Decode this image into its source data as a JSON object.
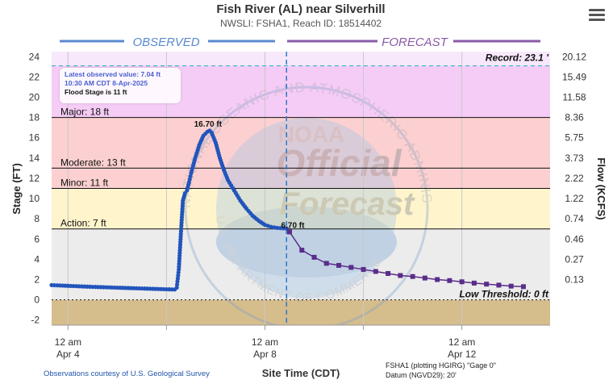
{
  "title": "Fish River (AL) near Silverhill",
  "subtitle": "NWSLI: FSHA1, Reach ID: 18514402",
  "observed_label": "OBSERVED",
  "forecast_label": "FORECAST",
  "info_box": {
    "latest": "Latest observed value: 7.04 ft",
    "time": "10:30 AM CDT 8-Apr-2025",
    "flood_stage": "Flood Stage is 11 ft"
  },
  "watermark": {
    "ring_text": "NATIONAL OCEANIC AND ATMOSPHERIC ADMINISTRATION",
    "bottom_text": "U.S. DEPARTMENT OF COMMERCE",
    "noaa": "NOAA",
    "official": "Official",
    "forecast": "Forecast"
  },
  "credit": "Observations courtesy of U.S. Geological Survey",
  "footnote1": "FSHA1 (plotting HGIRG) \"Gage 0\"",
  "footnote2": "Datum (NGVD29): 20'",
  "colors": {
    "observed": "#2255bb",
    "forecast": "#5a2d8a",
    "major": "#f4c6f4",
    "moderate": "#fcd0d0",
    "minor": "#fff4cc",
    "action": "#ececec",
    "below": "#d6bd8c",
    "current_line": "#2a7ac9"
  },
  "chart_data": {
    "type": "line",
    "xlabel": "Site Time (CDT)",
    "ylabel": "Stage (FT)",
    "y2label": "Flow (KCFS)",
    "ylim": [
      -2.5,
      24.5
    ],
    "xlim": [
      "2025-04-03T16:00",
      "2025-04-13T19:00"
    ],
    "y_ticks": [
      -2,
      0,
      2,
      4,
      6,
      8,
      10,
      12,
      14,
      16,
      18,
      20,
      22,
      24
    ],
    "y2_ticks": [
      {
        "stage": 2,
        "flow": "0.13"
      },
      {
        "stage": 4,
        "flow": "0.27"
      },
      {
        "stage": 6,
        "flow": "0.46"
      },
      {
        "stage": 8,
        "flow": "0.74"
      },
      {
        "stage": 10,
        "flow": "1.22"
      },
      {
        "stage": 12,
        "flow": "2.22"
      },
      {
        "stage": 14,
        "flow": "3.73"
      },
      {
        "stage": 16,
        "flow": "5.75"
      },
      {
        "stage": 18,
        "flow": "8.36"
      },
      {
        "stage": 20,
        "flow": "11.58"
      },
      {
        "stage": 22,
        "flow": "15.49"
      },
      {
        "stage": 24,
        "flow": "20.12"
      }
    ],
    "x_ticks": [
      {
        "t": "2025-04-04T00:00",
        "line1": "12 am",
        "line2": "Apr 4"
      },
      {
        "t": "2025-04-06T00:00",
        "line1": "",
        "line2": ""
      },
      {
        "t": "2025-04-08T00:00",
        "line1": "12 am",
        "line2": "Apr 8"
      },
      {
        "t": "2025-04-10T00:00",
        "line1": "",
        "line2": ""
      },
      {
        "t": "2025-04-12T00:00",
        "line1": "12 am",
        "line2": "Apr 12"
      }
    ],
    "thresholds": {
      "record": {
        "value": 23.1,
        "label": "Record: 23.1 '"
      },
      "major": {
        "value": 18,
        "label": "Major: 18 ft"
      },
      "moderate": {
        "value": 13,
        "label": "Moderate: 13 ft"
      },
      "minor": {
        "value": 11,
        "label": "Minor: 11 ft"
      },
      "action": {
        "value": 7,
        "label": "Action: 7 ft"
      },
      "low": {
        "value": 0,
        "label": "Low Threshold: 0 ft"
      }
    },
    "current_time": "2025-04-08T10:30",
    "peak_label": {
      "t": "2025-04-06T21:00",
      "value": 16.7,
      "label": "16.70 ft"
    },
    "forecast_start_label": {
      "t": "2025-04-08T12:00",
      "value": 6.7,
      "label": "6.70 ft"
    },
    "observed": [
      [
        "2025-04-03T16:00",
        1.45
      ],
      [
        "2025-04-04T00:00",
        1.38
      ],
      [
        "2025-04-04T12:00",
        1.28
      ],
      [
        "2025-04-05T00:00",
        1.2
      ],
      [
        "2025-04-05T12:00",
        1.12
      ],
      [
        "2025-04-06T00:00",
        1.04
      ],
      [
        "2025-04-06T04:00",
        1.02
      ],
      [
        "2025-04-06T05:00",
        1.2
      ],
      [
        "2025-04-06T06:00",
        3.0
      ],
      [
        "2025-04-06T07:00",
        6.5
      ],
      [
        "2025-04-06T08:00",
        9.8
      ],
      [
        "2025-04-06T09:00",
        10.5
      ],
      [
        "2025-04-06T10:00",
        10.8
      ],
      [
        "2025-04-06T11:00",
        11.6
      ],
      [
        "2025-04-06T12:00",
        12.5
      ],
      [
        "2025-04-06T14:00",
        14.0
      ],
      [
        "2025-04-06T16:00",
        15.3
      ],
      [
        "2025-04-06T18:00",
        16.2
      ],
      [
        "2025-04-06T20:00",
        16.6
      ],
      [
        "2025-04-06T21:00",
        16.7
      ],
      [
        "2025-04-06T22:00",
        16.5
      ],
      [
        "2025-04-07T00:00",
        15.5
      ],
      [
        "2025-04-07T02:00",
        14.0
      ],
      [
        "2025-04-07T04:00",
        12.8
      ],
      [
        "2025-04-07T06:00",
        11.8
      ],
      [
        "2025-04-07T09:00",
        10.8
      ],
      [
        "2025-04-07T12:00",
        9.8
      ],
      [
        "2025-04-07T15:00",
        9.0
      ],
      [
        "2025-04-07T18:00",
        8.3
      ],
      [
        "2025-04-07T21:00",
        7.8
      ],
      [
        "2025-04-08T00:00",
        7.4
      ],
      [
        "2025-04-08T03:00",
        7.2
      ],
      [
        "2025-04-08T06:00",
        7.1
      ],
      [
        "2025-04-08T10:30",
        7.04
      ]
    ],
    "forecast": [
      [
        "2025-04-08T12:00",
        6.7
      ],
      [
        "2025-04-08T18:00",
        4.9
      ],
      [
        "2025-04-09T00:00",
        4.2
      ],
      [
        "2025-04-09T06:00",
        3.6
      ],
      [
        "2025-04-09T12:00",
        3.4
      ],
      [
        "2025-04-09T18:00",
        3.2
      ],
      [
        "2025-04-10T00:00",
        3.0
      ],
      [
        "2025-04-10T06:00",
        2.8
      ],
      [
        "2025-04-10T12:00",
        2.6
      ],
      [
        "2025-04-10T18:00",
        2.4
      ],
      [
        "2025-04-11T00:00",
        2.3
      ],
      [
        "2025-04-11T06:00",
        2.15
      ],
      [
        "2025-04-11T12:00",
        2.0
      ],
      [
        "2025-04-11T18:00",
        1.9
      ],
      [
        "2025-04-12T00:00",
        1.78
      ],
      [
        "2025-04-12T06:00",
        1.65
      ],
      [
        "2025-04-12T12:00",
        1.55
      ],
      [
        "2025-04-12T18:00",
        1.45
      ],
      [
        "2025-04-13T00:00",
        1.35
      ],
      [
        "2025-04-13T06:00",
        1.3
      ]
    ]
  }
}
